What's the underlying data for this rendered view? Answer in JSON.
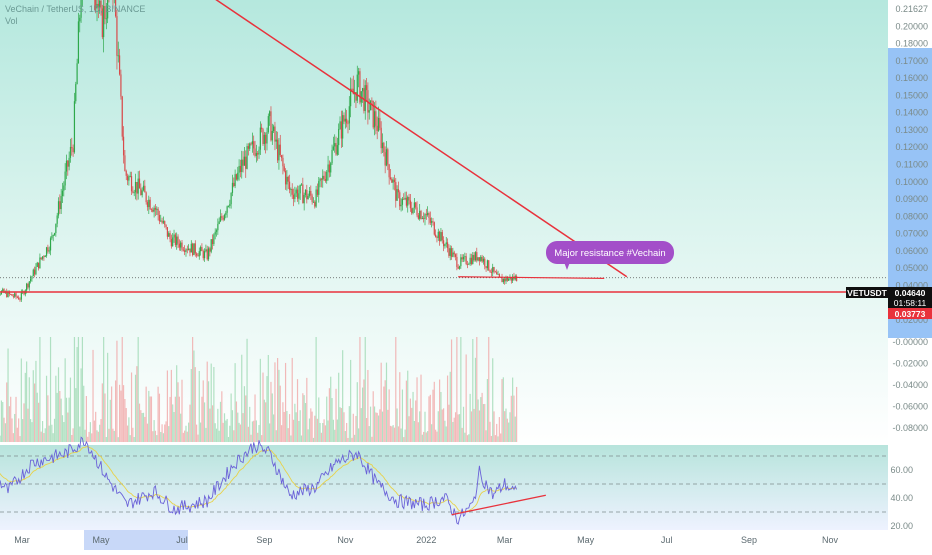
{
  "header": {
    "title": "VeChain / TetherUS, 1D, BINANCE",
    "sub": "Vol"
  },
  "annotation": {
    "text": "Major resistance #Vechain"
  },
  "price_tags": {
    "symbol": "VETUSDT",
    "last": "0.04640",
    "countdown": "01:58:11",
    "support": "0.03773"
  },
  "colors": {
    "bg_top": "#b5e8de",
    "bg_bottom": "#ffffff",
    "up": "#2ea84b",
    "down": "#d84a4a",
    "trendline": "#e8323c",
    "rsi_line": "#6b62d8",
    "rsi_ma": "#e8d24a",
    "annotation_bg": "#a34fc9",
    "axis_highlight": "#8cbcf5"
  },
  "chart_data": [
    {
      "type": "candlestick",
      "series_name": "VETUSDT",
      "x_labels": [
        "Mar",
        "May",
        "Jul",
        "Sep",
        "Nov",
        "2022",
        "Mar",
        "May",
        "Jul",
        "Sep",
        "Nov"
      ],
      "y_ticks": [
        "0.21627",
        "0.20000",
        "0.18000",
        "0.17000",
        "0.16000",
        "0.15000",
        "0.14000",
        "0.13000",
        "0.12000",
        "0.11000",
        "0.10000",
        "0.09000",
        "0.08000",
        "0.07000",
        "0.06000",
        "0.05000",
        "0.04000",
        "0.03000",
        "0.02000"
      ],
      "y_ticks_lower": [
        "-0.00000",
        "-0.02000",
        "-0.04000",
        "-0.06000",
        "-0.08000"
      ],
      "price_keypoints": [
        {
          "date": "2021-02-05",
          "close": 0.04
        },
        {
          "date": "2021-03-01",
          "close": 0.034
        },
        {
          "date": "2021-03-25",
          "close": 0.07
        },
        {
          "date": "2021-04-10",
          "close": 0.13
        },
        {
          "date": "2021-04-19",
          "close": 0.27
        },
        {
          "date": "2021-05-01",
          "close": 0.2
        },
        {
          "date": "2021-05-10",
          "close": 0.23
        },
        {
          "date": "2021-05-19",
          "close": 0.11
        },
        {
          "date": "2021-06-10",
          "close": 0.09
        },
        {
          "date": "2021-06-22",
          "close": 0.07
        },
        {
          "date": "2021-07-20",
          "close": 0.06
        },
        {
          "date": "2021-08-15",
          "close": 0.115
        },
        {
          "date": "2021-09-05",
          "close": 0.14
        },
        {
          "date": "2021-09-20",
          "close": 0.1
        },
        {
          "date": "2021-10-10",
          "close": 0.095
        },
        {
          "date": "2021-11-10",
          "close": 0.165
        },
        {
          "date": "2021-11-25",
          "close": 0.14
        },
        {
          "date": "2021-12-10",
          "close": 0.095
        },
        {
          "date": "2021-12-31",
          "close": 0.085
        },
        {
          "date": "2022-01-25",
          "close": 0.055
        },
        {
          "date": "2022-02-10",
          "close": 0.06
        },
        {
          "date": "2022-02-25",
          "close": 0.045
        },
        {
          "date": "2022-03-10",
          "close": 0.0464
        }
      ],
      "trendlines": [
        {
          "name": "resistance",
          "from": {
            "date": "2021-04-19",
            "price": 0.27
          },
          "to": {
            "date": "2022-06-01",
            "price": 0.047
          }
        },
        {
          "name": "support",
          "from": {
            "date": "2021-01-01",
            "price": 0.03773
          },
          "to": {
            "date": "2022-12-01",
            "price": 0.03773
          }
        },
        {
          "name": "short-support",
          "from": {
            "date": "2022-01-25",
            "price": 0.047
          },
          "to": {
            "date": "2022-05-15",
            "price": 0.046
          }
        }
      ],
      "last_price": 0.0464
    },
    {
      "type": "line",
      "title": "RSI",
      "y_ticks": [
        "60.00",
        "40.00",
        "20.00"
      ],
      "levels": [
        70,
        50,
        30
      ],
      "series": [
        {
          "values": [
            {
              "date": "2021-02-05",
              "value": 60
            },
            {
              "date": "2021-02-20",
              "value": 45
            },
            {
              "date": "2021-03-10",
              "value": 65
            },
            {
              "date": "2021-04-05",
              "value": 72
            },
            {
              "date": "2021-04-19",
              "value": 82
            },
            {
              "date": "2021-05-05",
              "value": 55
            },
            {
              "date": "2021-05-20",
              "value": 35
            },
            {
              "date": "2021-06-10",
              "value": 45
            },
            {
              "date": "2021-06-25",
              "value": 32
            },
            {
              "date": "2021-07-20",
              "value": 38
            },
            {
              "date": "2021-08-10",
              "value": 65
            },
            {
              "date": "2021-08-25",
              "value": 78
            },
            {
              "date": "2021-09-05",
              "value": 72
            },
            {
              "date": "2021-09-20",
              "value": 42
            },
            {
              "date": "2021-10-10",
              "value": 48
            },
            {
              "date": "2021-10-25",
              "value": 65
            },
            {
              "date": "2021-11-10",
              "value": 72
            },
            {
              "date": "2021-11-25",
              "value": 50
            },
            {
              "date": "2021-12-10",
              "value": 38
            },
            {
              "date": "2021-12-31",
              "value": 35
            },
            {
              "date": "2022-01-15",
              "value": 40
            },
            {
              "date": "2022-01-25",
              "value": 25
            },
            {
              "date": "2022-02-05",
              "value": 35
            },
            {
              "date": "2022-02-10",
              "value": 58
            },
            {
              "date": "2022-02-20",
              "value": 42
            },
            {
              "date": "2022-03-01",
              "value": 50
            },
            {
              "date": "2022-03-10",
              "value": 43
            }
          ]
        }
      ],
      "trendline": {
        "from": {
          "date": "2022-01-20",
          "value": 28
        },
        "to": {
          "date": "2022-04-01",
          "value": 42
        }
      }
    }
  ]
}
